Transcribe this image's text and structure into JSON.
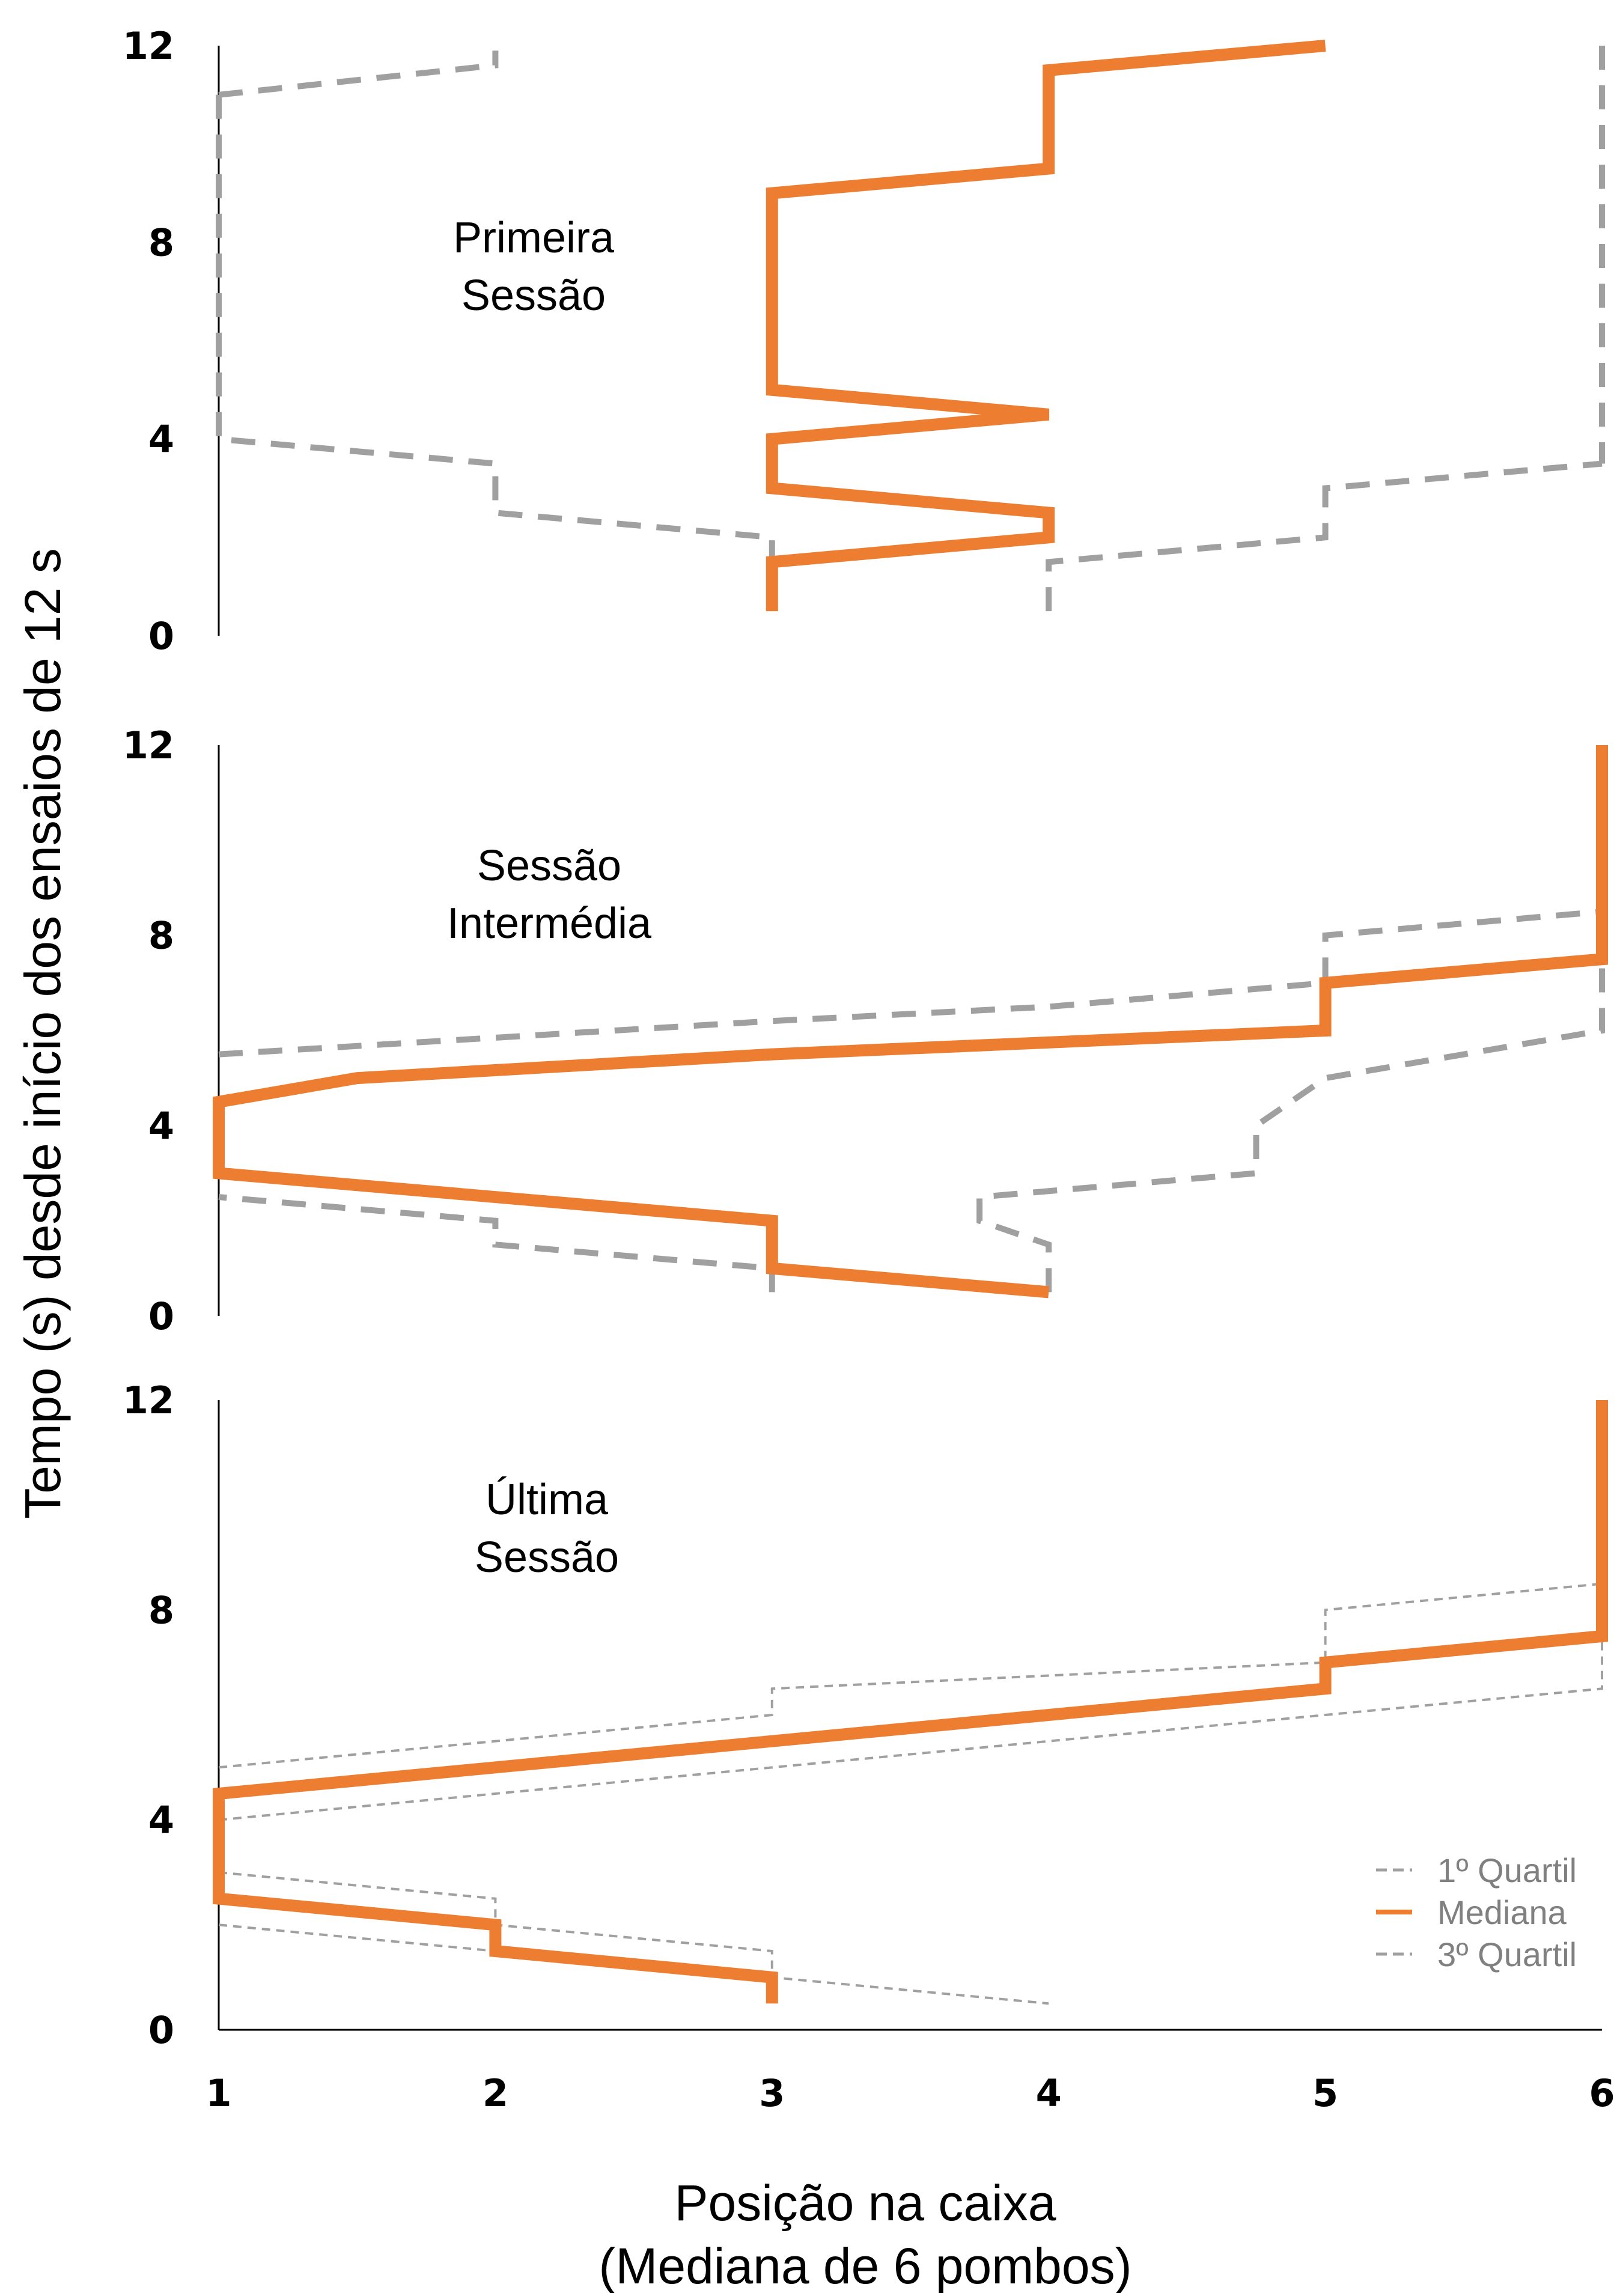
{
  "chart_data": {
    "type": "line",
    "x_axis": {
      "label_line1": "Posição na caixa",
      "label_line2": "(Mediana de 6 pombos)",
      "ticks": [
        "1",
        "2",
        "3",
        "4",
        "5",
        "6"
      ],
      "range": [
        1,
        6
      ]
    },
    "y_axis": {
      "label": "Tempo (s) desde início dos ensaios de 12 s",
      "ticks": [
        "0",
        "4",
        "8",
        "12"
      ],
      "range": [
        0,
        12
      ]
    },
    "legend": {
      "placement": "bottom-right of last panel",
      "entries": [
        {
          "label": "1º Quartil",
          "color": "#a0a0a0",
          "style": "dashed"
        },
        {
          "label": "Mediana",
          "color": "#ed7d31",
          "style": "solid"
        },
        {
          "label": "3º Quartil",
          "color": "#a0a0a0",
          "style": "dashed"
        }
      ]
    },
    "colors": {
      "median": "#ed7d31",
      "quartile": "#a0a0a0",
      "axis": "#000000"
    },
    "panels": [
      {
        "label_line1": "Primeira",
        "label_line2": "Sessão",
        "median": [
          [
            3,
            0.5
          ],
          [
            3,
            1.5
          ],
          [
            4,
            2
          ],
          [
            4,
            2.5
          ],
          [
            3,
            3
          ],
          [
            3,
            4
          ],
          [
            4,
            4.5
          ],
          [
            3,
            5
          ],
          [
            3,
            9
          ],
          [
            4,
            9.5
          ],
          [
            4,
            11.5
          ],
          [
            5,
            12
          ]
        ],
        "q1": [
          [
            1,
            11
          ],
          [
            1,
            4
          ],
          [
            2,
            3.5
          ],
          [
            2,
            2.5
          ],
          [
            3,
            2
          ],
          [
            3,
            1.5
          ]
        ],
        "q1_top": [
          [
            1,
            11
          ],
          [
            2,
            11.6
          ],
          [
            2,
            11.9
          ]
        ],
        "q3": [
          [
            4,
            0.5
          ],
          [
            4,
            1.5
          ],
          [
            5,
            2
          ],
          [
            5,
            3
          ],
          [
            6,
            3.5
          ]
        ],
        "q3_top": [
          [
            6,
            12
          ],
          [
            6,
            3.5
          ]
        ]
      },
      {
        "label_line1": "Sessão",
        "label_line2": "Intermédia",
        "median": [
          [
            4,
            0.5
          ],
          [
            3,
            1
          ],
          [
            3,
            2
          ],
          [
            1,
            3
          ],
          [
            1,
            4.5
          ],
          [
            1.5,
            5
          ],
          [
            3,
            5.5
          ],
          [
            5,
            6
          ],
          [
            5,
            7
          ],
          [
            6,
            7.5
          ],
          [
            6,
            12
          ]
        ],
        "q1": [
          [
            3,
            0.5
          ],
          [
            3,
            1
          ],
          [
            2,
            1.5
          ],
          [
            2,
            2
          ],
          [
            1,
            2.5
          ]
        ],
        "q1_b": [
          [
            1,
            5.5
          ],
          [
            3,
            6.2
          ],
          [
            4,
            6.5
          ],
          [
            5,
            7
          ],
          [
            5,
            8
          ],
          [
            6,
            8.5
          ],
          [
            6,
            12
          ]
        ],
        "q3": [
          [
            4,
            0.5
          ],
          [
            4,
            1.5
          ],
          [
            3.75,
            2
          ],
          [
            3.75,
            2.5
          ],
          [
            4.75,
            3
          ],
          [
            4.75,
            4
          ],
          [
            5,
            5
          ],
          [
            6,
            6
          ],
          [
            6,
            12
          ]
        ]
      },
      {
        "label_line1": "Última",
        "label_line2": "Sessão",
        "median": [
          [
            3,
            0.5
          ],
          [
            3,
            1
          ],
          [
            2,
            1.5
          ],
          [
            2,
            2
          ],
          [
            1,
            2.5
          ],
          [
            1,
            4.5
          ],
          [
            3,
            5.5
          ],
          [
            5,
            6.5
          ],
          [
            5,
            7
          ],
          [
            6,
            7.5
          ],
          [
            6,
            12
          ]
        ],
        "q1": [
          [
            1,
            3
          ],
          [
            2,
            2.5
          ],
          [
            2,
            2
          ],
          [
            3,
            1.5
          ],
          [
            3,
            1
          ],
          [
            4,
            0.5
          ]
        ],
        "q1_b": [
          [
            1,
            5
          ],
          [
            3,
            6
          ],
          [
            3,
            6.5
          ],
          [
            5,
            7
          ],
          [
            5,
            8
          ],
          [
            6,
            8.5
          ],
          [
            6,
            12
          ]
        ],
        "q3": [
          [
            1,
            2
          ],
          [
            3,
            1
          ]
        ],
        "q3_b": [
          [
            1,
            4
          ],
          [
            5,
            6
          ],
          [
            6,
            6.5
          ],
          [
            6,
            12
          ]
        ]
      }
    ]
  }
}
